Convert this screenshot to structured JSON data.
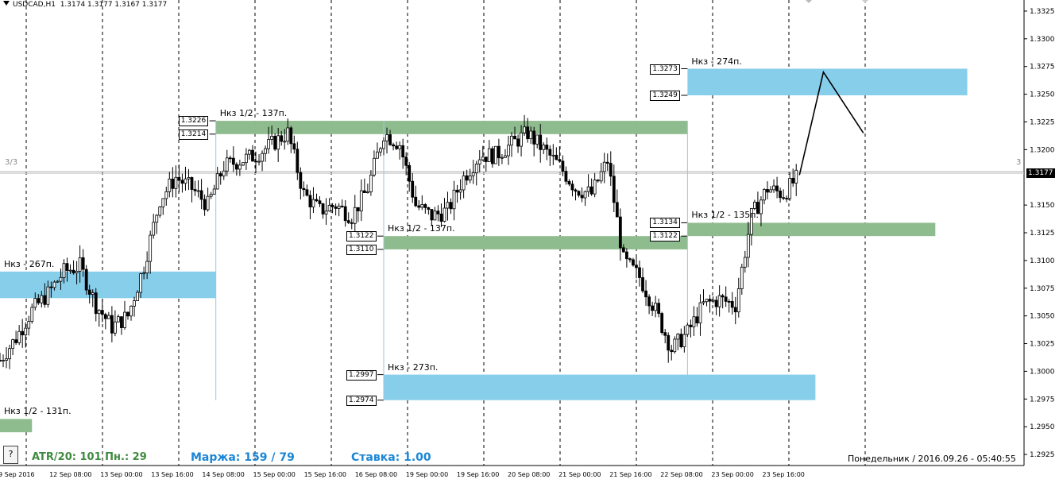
{
  "header": {
    "symbol": "USDCAD,H1",
    "ohlc": "1.3174 1.3177 1.3167 1.3177"
  },
  "levels": {
    "left": "3/3",
    "right": "3"
  },
  "current_price": "1.3177",
  "footer": {
    "help": "?",
    "atr": "ATR/20: 101  Пн.: 29",
    "margin": "Маржа: 159 / 79",
    "rate": "Ставка: 1.00",
    "datetime": "Понедельник  /  2016.09.26  -  05:40:55"
  },
  "boxes": [
    {
      "label": "Нкз - 267п.",
      "top": 1.309,
      "bottom": 1.3066,
      "x0": 0,
      "x1": 13.5,
      "color": "#87ceeb"
    },
    {
      "label": "Нкз 1/2 - 137п.",
      "top": 1.3226,
      "bottom": 1.3214,
      "x0": 13.5,
      "x1": 43.0,
      "color": "#8fbc8f",
      "tags": [
        "1.3226",
        "1.3214"
      ]
    },
    {
      "label": "Нкз 1/2 - 137п.",
      "top": 1.3122,
      "bottom": 1.311,
      "x0": 24.0,
      "x1": 43.0,
      "color": "#8fbc8f",
      "tags": [
        "1.3122",
        "1.3110"
      ]
    },
    {
      "label": "Нкз - 273п.",
      "top": 1.2997,
      "bottom": 1.2974,
      "x0": 24.0,
      "x1": 51.0,
      "color": "#87ceeb",
      "tags": [
        "1.2997",
        "1.2974"
      ]
    },
    {
      "label": "Нкз - 274п.",
      "top": 1.3273,
      "bottom": 1.3249,
      "x0": 43.0,
      "x1": 60.5,
      "color": "#87ceeb",
      "tags": [
        "1.3273",
        "1.3249"
      ]
    },
    {
      "label": "Нкз 1/2 - 135п.",
      "top": 1.3134,
      "bottom": 1.3122,
      "x0": 43.0,
      "x1": 58.5,
      "color": "#8fbc8f",
      "tags": [
        "1.3134",
        "1.3122"
      ]
    },
    {
      "label": "Нкз 1/2 - 131п.",
      "top": 1.2957,
      "bottom": 1.2945,
      "x0": 0,
      "x1": 2.0,
      "color": "#8fbc8f"
    }
  ],
  "chart_data": {
    "type": "candlestick",
    "symbol": "USDCAD,H1",
    "y_range": [
      1.2915,
      1.3335
    ],
    "y_ticks": [
      "1.3325",
      "1.3300",
      "1.3275",
      "1.3250",
      "1.3225",
      "1.3200",
      "1.3150",
      "1.3125",
      "1.3100",
      "1.3075",
      "1.3050",
      "1.3025",
      "1.3000",
      "1.2975",
      "1.2950",
      "1.2925"
    ],
    "x_ticks": [
      "9 Sep 2016",
      "12 Sep 08:00",
      "13 Sep 00:00",
      "13 Sep 16:00",
      "14 Sep 08:00",
      "15 Sep 00:00",
      "15 Sep 16:00",
      "16 Sep 08:00",
      "19 Sep 00:00",
      "19 Sep 16:00",
      "20 Sep 08:00",
      "21 Sep 00:00",
      "21 Sep 16:00",
      "22 Sep 08:00",
      "23 Sep 00:00",
      "23 Sep 16:00"
    ],
    "grid": "vertical dashed",
    "horizontal_line": 1.318,
    "close_path": [
      [
        0,
        1.301
      ],
      [
        1,
        1.303
      ],
      [
        2,
        1.3055
      ],
      [
        3,
        1.307
      ],
      [
        4,
        1.309
      ],
      [
        5,
        1.3095
      ],
      [
        6,
        1.306
      ],
      [
        7,
        1.304
      ],
      [
        8,
        1.305
      ],
      [
        9,
        1.3095
      ],
      [
        10,
        1.3155
      ],
      [
        11,
        1.3175
      ],
      [
        12,
        1.3165
      ],
      [
        13,
        1.315
      ],
      [
        14,
        1.3185
      ],
      [
        15,
        1.319
      ],
      [
        16,
        1.3195
      ],
      [
        17,
        1.3205
      ],
      [
        18,
        1.3215
      ],
      [
        19,
        1.316
      ],
      [
        20,
        1.3145
      ],
      [
        21,
        1.315
      ],
      [
        22,
        1.314
      ],
      [
        23,
        1.3165
      ],
      [
        24,
        1.3215
      ],
      [
        25,
        1.3205
      ],
      [
        26,
        1.315
      ],
      [
        27,
        1.314
      ],
      [
        28,
        1.3145
      ],
      [
        29,
        1.3175
      ],
      [
        30,
        1.3195
      ],
      [
        31,
        1.3195
      ],
      [
        32,
        1.3205
      ],
      [
        33,
        1.3215
      ],
      [
        34,
        1.32
      ],
      [
        35,
        1.3185
      ],
      [
        36,
        1.3165
      ],
      [
        37,
        1.316
      ],
      [
        38,
        1.319
      ],
      [
        39,
        1.31
      ],
      [
        40,
        1.3085
      ],
      [
        41,
        1.3055
      ],
      [
        42,
        1.302
      ],
      [
        43,
        1.3035
      ],
      [
        44,
        1.306
      ],
      [
        45,
        1.3065
      ],
      [
        46,
        1.306
      ],
      [
        47,
        1.314
      ],
      [
        48,
        1.3165
      ],
      [
        49,
        1.316
      ],
      [
        50,
        1.3177
      ]
    ],
    "forecast_path": [
      [
        50,
        1.3177
      ],
      [
        51.5,
        1.327
      ],
      [
        54,
        1.3215
      ]
    ]
  }
}
